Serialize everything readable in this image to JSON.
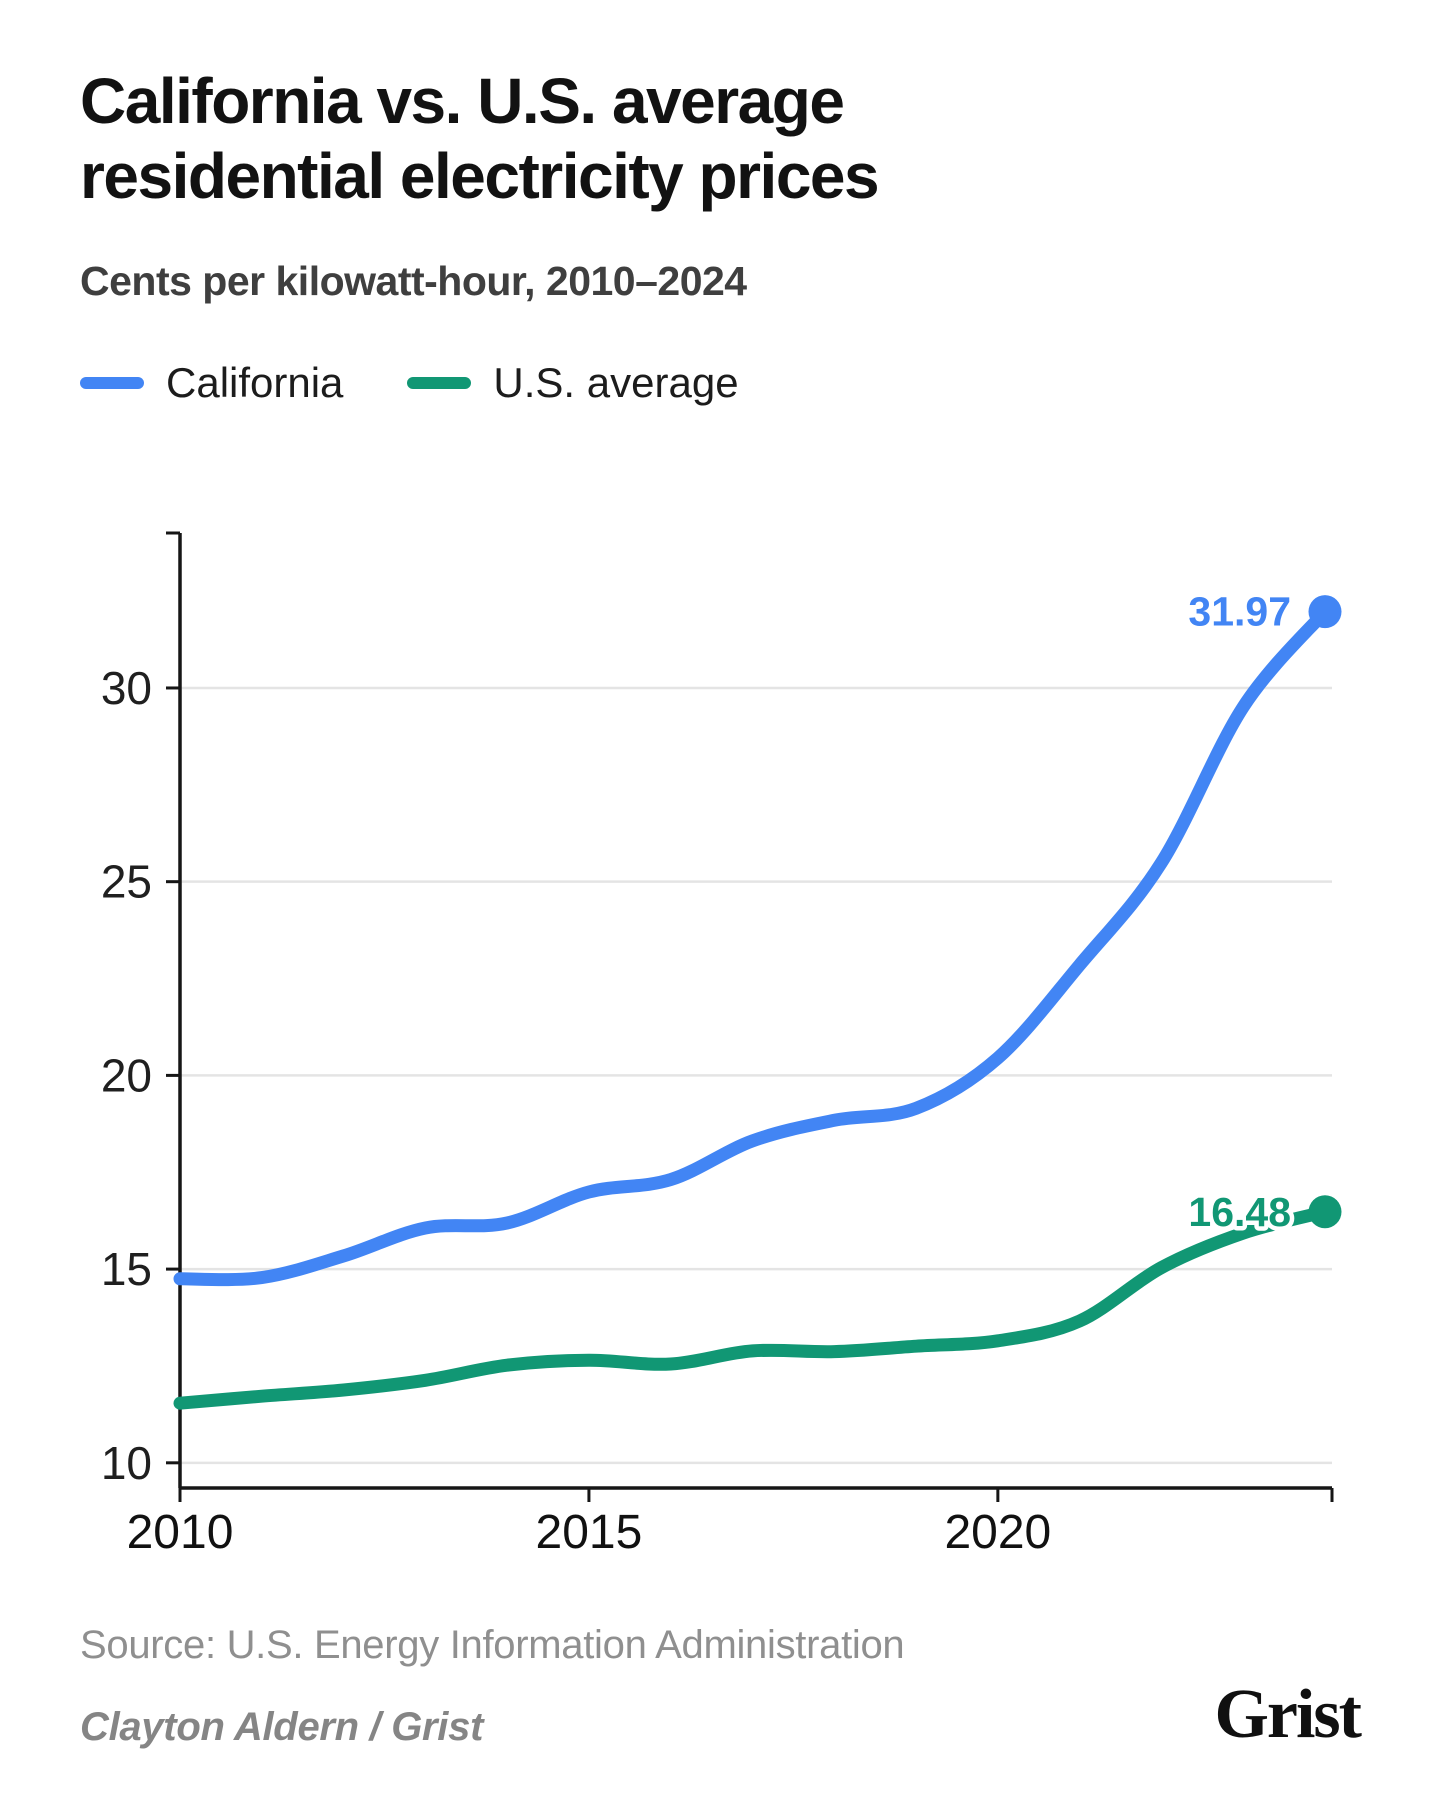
{
  "header": {
    "title_line1": "California vs. U.S. average",
    "title_line2": "residential electricity prices",
    "subtitle": "Cents per kilowatt-hour, 2010–2024"
  },
  "chart_data": {
    "type": "line",
    "title": "California vs. U.S. average residential electricity prices",
    "subtitle": "Cents per kilowatt-hour, 2010–2024",
    "x": [
      2010,
      2011,
      2012,
      2013,
      2014,
      2015,
      2016,
      2017,
      2018,
      2019,
      2020,
      2021,
      2022,
      2023,
      2024
    ],
    "x_ticks": [
      2010,
      2015,
      2020
    ],
    "y_ticks": [
      10,
      15,
      20,
      25,
      30
    ],
    "x_domain": [
      2010,
      2024
    ],
    "y_domain": [
      9.35,
      34.0
    ],
    "grid": "horizontal-only",
    "legend_position": "top-left",
    "units": "cents per kilowatt-hour",
    "series": [
      {
        "name": "California",
        "color": "#4285f4",
        "values": [
          14.75,
          14.78,
          15.34,
          16.06,
          16.19,
          16.99,
          17.31,
          18.31,
          18.84,
          19.15,
          20.45,
          22.85,
          25.49,
          29.51,
          31.97
        ],
        "end_label": "31.97"
      },
      {
        "name": "U.S. average",
        "color": "#119774",
        "values": [
          11.54,
          11.72,
          11.88,
          12.13,
          12.52,
          12.65,
          12.55,
          12.89,
          12.87,
          13.01,
          13.15,
          13.66,
          15.04,
          15.93,
          16.48
        ],
        "end_label": "16.48"
      }
    ]
  },
  "footer": {
    "source": "Source: U.S. Energy Information Administration",
    "credit": "Clayton Aldern / Grist",
    "logo": "Grist"
  }
}
